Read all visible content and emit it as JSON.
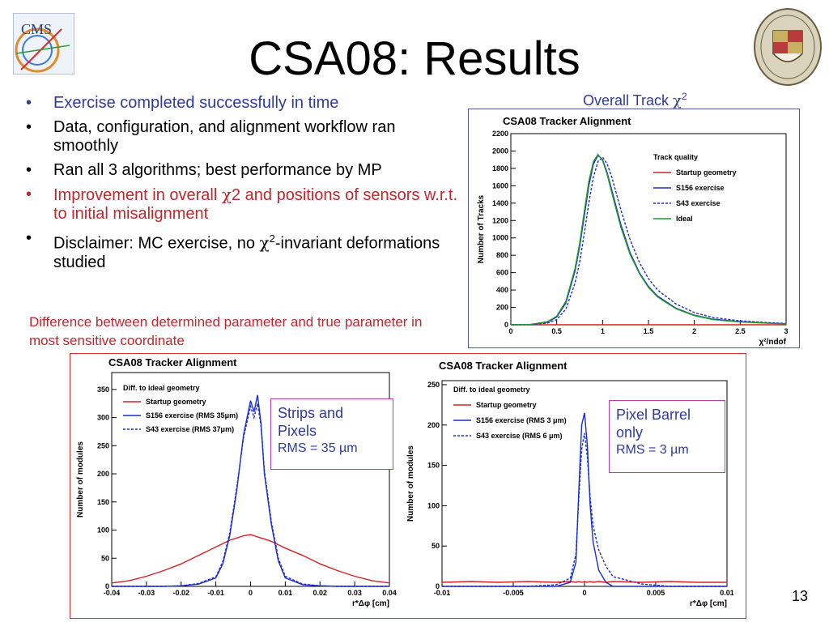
{
  "slide": {
    "title": "CSA08: Results",
    "number": "13",
    "logo_left_text": "CMS",
    "bullets": [
      {
        "text": "Exercise completed successfully in time",
        "color": "#2d3a9e"
      },
      {
        "text": "Data, configuration, and alignment workflow ran smoothly",
        "color": "#000000"
      },
      {
        "text": "Ran all 3 algorithms; best performance by MP",
        "color": "#000000"
      },
      {
        "pre": "Improvement in overall ",
        "chi": "χ",
        "post": "2 and positions of sensors w.r.t. to initial misalignment",
        "color": "#c0272d"
      },
      {
        "pre": "Disclaimer: MC exercise, no ",
        "chi": "χ",
        "sup": "2",
        "post": "-invariant deformations studied",
        "color": "#000000"
      }
    ],
    "caption": "Difference between determined parameter and true parameter in most sensitive coordinate",
    "chi_plot_title_pre": "Overall Track ",
    "chi_plot_title_chi": "χ",
    "chi_plot_title_sup": "2",
    "notes": [
      {
        "line1": "Strips and",
        "line2": "Pixels",
        "line3": "RMS = 35 µm"
      },
      {
        "line1": "Pixel Barrel",
        "line2": "only",
        "line3": "RMS = 3 µm"
      }
    ]
  },
  "chart_data": [
    {
      "type": "line",
      "title": "CSA08 Tracker Alignment",
      "xlabel": "χ²/ndof",
      "ylabel": "Number of Tracks",
      "xlim": [
        0,
        3
      ],
      "ylim": [
        0,
        2200
      ],
      "xticks": [
        "0",
        "0.5",
        "1",
        "1.5",
        "2",
        "2.5",
        "3"
      ],
      "yticks": [
        "0",
        "200",
        "400",
        "600",
        "800",
        "1000",
        "1200",
        "1400",
        "1600",
        "1800",
        "2000",
        "2200"
      ],
      "legend_title": "Track quality",
      "legend_position": "top-right",
      "x": [
        0,
        0.2,
        0.4,
        0.5,
        0.6,
        0.7,
        0.75,
        0.8,
        0.85,
        0.9,
        0.95,
        1.0,
        1.05,
        1.1,
        1.2,
        1.3,
        1.4,
        1.5,
        1.6,
        1.8,
        2.0,
        2.2,
        2.5,
        2.8,
        3.0
      ],
      "series": [
        {
          "name": "Startup geometry",
          "color": "#d62020",
          "dash": "",
          "values": [
            0,
            0,
            0,
            0,
            0,
            0,
            0,
            0,
            0,
            0,
            0,
            0,
            0,
            0,
            0,
            0,
            0,
            0,
            0,
            0,
            0,
            0,
            0,
            0,
            0
          ]
        },
        {
          "name": "S156 exercise",
          "color": "#1a2bd0",
          "dash": "",
          "values": [
            0,
            2,
            30,
            90,
            250,
            620,
            900,
            1250,
            1600,
            1850,
            1950,
            1900,
            1750,
            1550,
            1150,
            830,
            600,
            440,
            330,
            190,
            110,
            65,
            35,
            20,
            12
          ]
        },
        {
          "name": "S43 exercise",
          "color": "#1a2bd0",
          "dash": "3,2",
          "values": [
            0,
            1,
            20,
            60,
            180,
            480,
            720,
            1050,
            1400,
            1700,
            1880,
            1930,
            1850,
            1700,
            1320,
            980,
            720,
            530,
            400,
            240,
            140,
            85,
            45,
            25,
            15
          ]
        },
        {
          "name": "Ideal",
          "color": "#1e9a2a",
          "dash": "",
          "values": [
            0,
            2,
            35,
            100,
            270,
            650,
            940,
            1300,
            1650,
            1880,
            1960,
            1890,
            1730,
            1520,
            1120,
            810,
            590,
            430,
            320,
            185,
            105,
            60,
            32,
            18,
            10
          ]
        }
      ]
    },
    {
      "type": "line",
      "title": "CSA08 Tracker Alignment",
      "xlabel": "r*Δφ [cm]",
      "ylabel": "Number of modules",
      "xlim": [
        -0.04,
        0.04
      ],
      "ylim": [
        0,
        380
      ],
      "xticks": [
        "-0.04",
        "-0.03",
        "-0.02",
        "-0.01",
        "0",
        "0.01",
        "0.02",
        "0.03",
        "0.04"
      ],
      "yticks": [
        "0",
        "50",
        "100",
        "150",
        "200",
        "250",
        "300",
        "350"
      ],
      "legend_title": "Diff. to ideal geometry",
      "legend_position": "top-left",
      "x": [
        -0.04,
        -0.035,
        -0.03,
        -0.025,
        -0.02,
        -0.015,
        -0.01,
        -0.008,
        -0.006,
        -0.004,
        -0.002,
        0,
        0.001,
        0.002,
        0.003,
        0.004,
        0.006,
        0.008,
        0.01,
        0.015,
        0.02,
        0.025,
        0.03,
        0.035,
        0.04
      ],
      "series": [
        {
          "name": "Startup geometry",
          "color": "#d62020",
          "dash": "",
          "values": [
            6,
            10,
            18,
            28,
            40,
            55,
            70,
            76,
            82,
            86,
            90,
            92,
            90,
            88,
            86,
            84,
            80,
            74,
            68,
            55,
            40,
            28,
            18,
            10,
            6
          ]
        },
        {
          "name": "S156 exercise (RMS 35μm)",
          "color": "#1a2bd0",
          "dash": "",
          "values": [
            0,
            0,
            0,
            0,
            1,
            4,
            15,
            40,
            90,
            170,
            270,
            330,
            310,
            340,
            290,
            200,
            110,
            45,
            15,
            3,
            1,
            0,
            0,
            0,
            0
          ]
        },
        {
          "name": "S43 exercise  (RMS 37μm)",
          "color": "#1a2bd0",
          "dash": "3,2",
          "values": [
            0,
            0,
            0,
            0,
            1,
            5,
            17,
            44,
            95,
            175,
            265,
            320,
            300,
            325,
            285,
            205,
            115,
            50,
            18,
            4,
            1,
            0,
            0,
            0,
            0
          ]
        }
      ]
    },
    {
      "type": "line",
      "title": "CSA08 Tracker Alignment",
      "xlabel": "r*Δφ [cm]",
      "ylabel": "Number of modules",
      "xlim": [
        -0.01,
        0.01
      ],
      "ylim": [
        0,
        255
      ],
      "xticks": [
        "-0.01",
        "-0.005",
        "0",
        "0.005",
        "0.01"
      ],
      "yticks": [
        "0",
        "50",
        "100",
        "150",
        "200",
        "250"
      ],
      "legend_title": "Diff. to ideal geometry",
      "legend_position": "top-left",
      "x": [
        -0.01,
        -0.008,
        -0.006,
        -0.004,
        -0.002,
        -0.001,
        -0.0006,
        -0.0004,
        -0.0002,
        0,
        0.0002,
        0.0004,
        0.0006,
        0.001,
        0.0015,
        0.002,
        0.004,
        0.006,
        0.008,
        0.01
      ],
      "series": [
        {
          "name": "Startup geometry",
          "color": "#d62020",
          "dash": "",
          "values": [
            5,
            6,
            5,
            6,
            5,
            6,
            5,
            6,
            5,
            6,
            5,
            6,
            5,
            6,
            5,
            6,
            5,
            6,
            5,
            5
          ]
        },
        {
          "name": "S156 exercise (RMS 3 μm)",
          "color": "#1a2bd0",
          "dash": "",
          "values": [
            0,
            0,
            0,
            0,
            0,
            5,
            30,
            120,
            200,
            215,
            175,
            100,
            55,
            20,
            5,
            0,
            0,
            0,
            0,
            0
          ]
        },
        {
          "name": "S43 exercise (RMS 6 μm)",
          "color": "#1a2bd0",
          "dash": "3,2",
          "values": [
            0,
            0,
            0,
            0,
            2,
            10,
            40,
            110,
            170,
            190,
            160,
            110,
            75,
            45,
            25,
            12,
            3,
            0,
            0,
            0
          ]
        }
      ]
    }
  ]
}
